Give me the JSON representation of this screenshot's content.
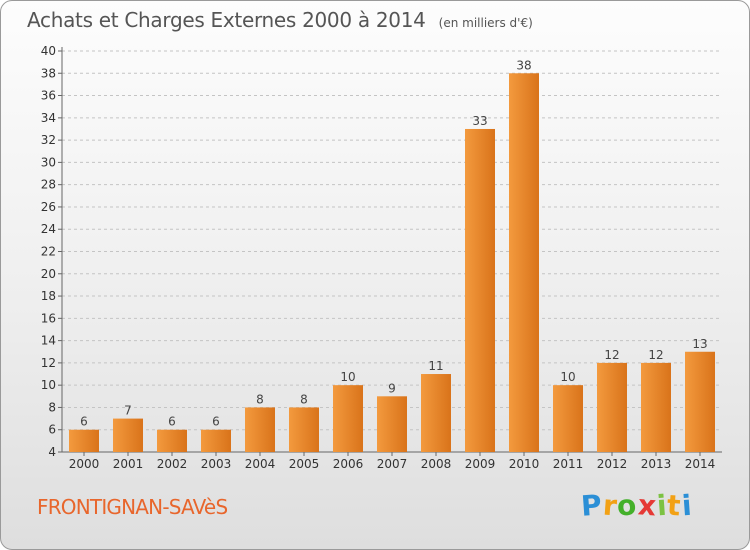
{
  "title": "Achats et Charges Externes 2000 à 2014",
  "unit": "(en milliers d'€)",
  "commune": "FRONTIGNAN-SAVèS",
  "brand": {
    "letters": [
      "P",
      "r",
      "o",
      "x",
      "i",
      "t",
      "i"
    ],
    "colors": [
      "#2b8fd6",
      "#f2a115",
      "#43b02a",
      "#e53935",
      "#7cc242",
      "#f2a115",
      "#2b8fd6"
    ]
  },
  "colors": {
    "bar": "#f39a3e",
    "bar_dark": "#d9731a",
    "commune": "#e8662c"
  },
  "chart_data": {
    "type": "bar",
    "categories": [
      "2000",
      "2001",
      "2002",
      "2003",
      "2004",
      "2005",
      "2006",
      "2007",
      "2008",
      "2009",
      "2010",
      "2011",
      "2012",
      "2013",
      "2014"
    ],
    "values": [
      6,
      7,
      6,
      6,
      8,
      8,
      10,
      9,
      11,
      33,
      38,
      10,
      12,
      12,
      13
    ],
    "data_labels": [
      "6",
      "7",
      "6",
      "6",
      "8",
      "8",
      "10",
      "9",
      "11",
      "33",
      "38",
      "10",
      "12",
      "12",
      "13"
    ],
    "yticks": [
      "4",
      "6",
      "8",
      "10",
      "12",
      "14",
      "16",
      "18",
      "20",
      "22",
      "24",
      "26",
      "28",
      "30",
      "32",
      "34",
      "36",
      "38",
      "40"
    ],
    "ylim": [
      4,
      40
    ],
    "ystep": 2,
    "grid": "horizontal-dashed",
    "legend": "none"
  }
}
